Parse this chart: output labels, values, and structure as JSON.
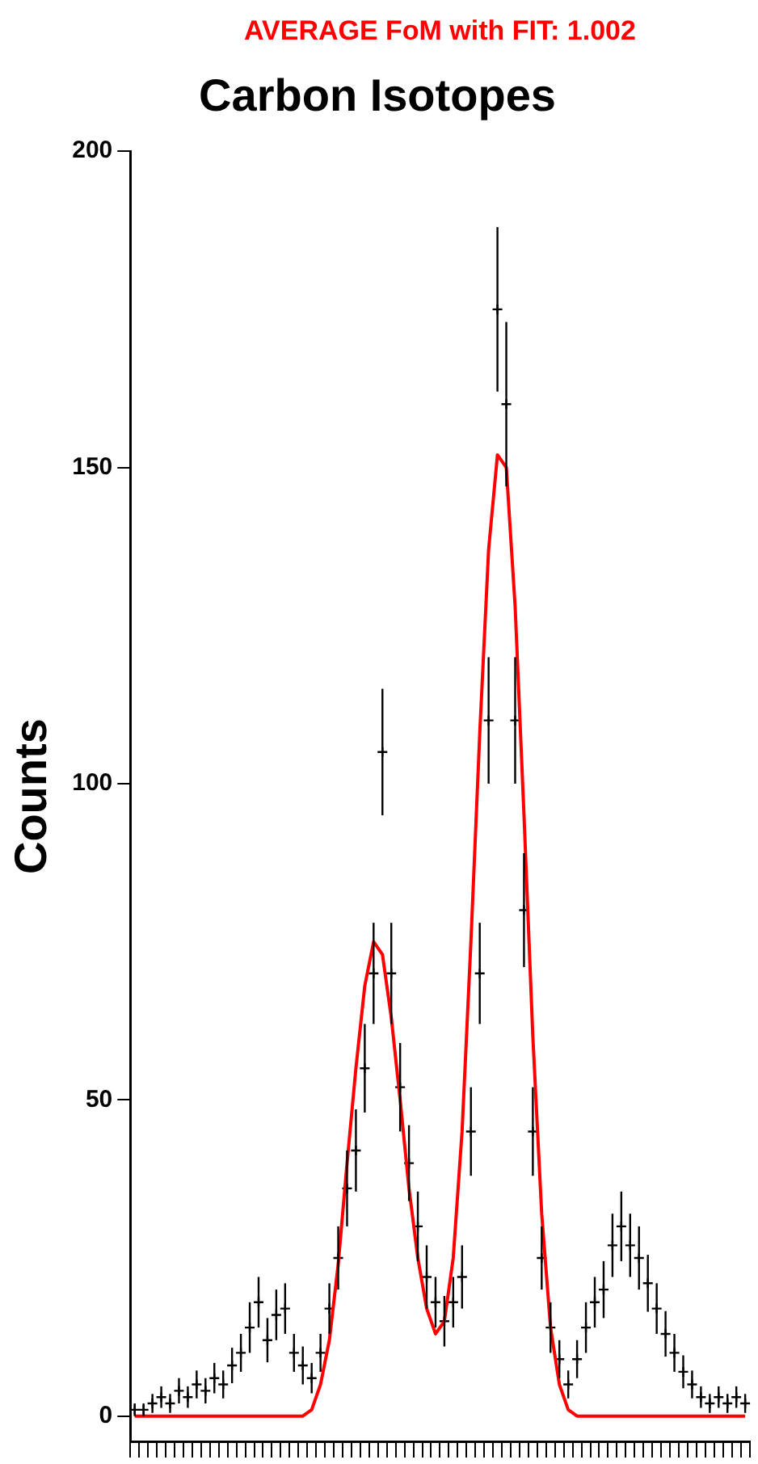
{
  "chart_data": {
    "type": "scatter",
    "title": "Carbon Isotopes",
    "ylabel": "Counts",
    "annotations": [
      "AVERAGE FoM with FIT: 1.002"
    ],
    "categories": [
      null,
      null,
      null,
      null,
      null,
      null,
      null,
      null,
      null,
      null,
      null,
      null,
      null,
      null,
      null,
      null,
      null,
      null,
      null,
      null,
      null,
      null,
      null,
      null,
      null,
      null,
      null,
      null,
      null,
      null,
      null,
      null,
      null,
      null,
      null,
      null,
      null,
      null,
      null,
      null,
      null,
      null,
      null,
      null,
      null,
      null,
      null,
      null,
      null,
      null,
      null,
      null,
      null,
      null,
      null,
      null,
      null,
      null,
      null,
      null,
      null,
      null,
      null,
      null,
      null,
      null,
      null,
      null,
      null,
      null
    ],
    "series": [
      {
        "color": "#000000",
        "marker": "cross",
        "values": [
          1,
          1,
          2,
          3,
          2,
          4,
          3,
          5,
          4,
          6,
          5,
          8,
          10,
          14,
          18,
          12,
          16,
          17,
          10,
          8,
          6,
          10,
          17,
          25,
          36,
          42,
          55,
          70,
          105,
          70,
          52,
          40,
          30,
          22,
          18,
          15,
          18,
          22,
          45,
          70,
          110,
          175,
          160,
          110,
          80,
          45,
          25,
          14,
          9,
          5,
          9,
          14,
          18,
          20,
          27,
          30,
          27,
          25,
          21,
          17,
          13,
          10,
          7,
          5,
          3,
          2,
          3,
          2,
          3,
          2
        ],
        "errors": [
          1,
          1,
          1.5,
          1.7,
          1.5,
          2,
          1.7,
          2.2,
          2,
          2.4,
          2.2,
          2.8,
          3,
          4,
          4,
          3.5,
          4,
          4,
          3,
          3,
          2.4,
          3,
          4,
          5,
          6,
          6.5,
          7,
          8,
          10,
          8,
          7,
          6,
          5.5,
          5,
          4,
          4,
          4,
          5,
          7,
          8,
          10,
          13,
          13,
          10,
          9,
          7,
          5,
          4,
          3,
          2.2,
          3,
          4,
          4,
          4.5,
          5,
          5.5,
          5,
          5,
          4.5,
          4,
          3.6,
          3,
          2.6,
          2.2,
          1.7,
          1.5,
          1.7,
          1.5,
          1.7,
          1.5
        ]
      },
      {
        "type": "line",
        "color": "#ff0000",
        "marker": "none",
        "values": [
          0,
          0,
          0,
          0,
          0,
          0,
          0,
          0,
          0,
          0,
          0,
          0,
          0,
          0,
          0,
          0,
          0,
          0,
          0,
          0,
          1,
          5,
          12,
          24,
          40,
          55,
          68,
          75,
          73,
          63,
          50,
          36,
          25,
          17,
          13,
          15,
          25,
          45,
          75,
          108,
          137,
          152,
          150,
          128,
          95,
          60,
          32,
          14,
          5,
          1,
          0,
          0,
          0,
          0,
          0,
          0,
          0,
          0,
          0,
          0,
          0,
          0,
          0,
          0,
          0,
          0,
          0,
          0,
          0,
          0
        ]
      }
    ],
    "ylim": [
      -4,
      200
    ],
    "yticks": [
      0,
      50,
      100,
      150,
      200
    ],
    "grid": false,
    "legend": false,
    "tick_labels": "y"
  }
}
